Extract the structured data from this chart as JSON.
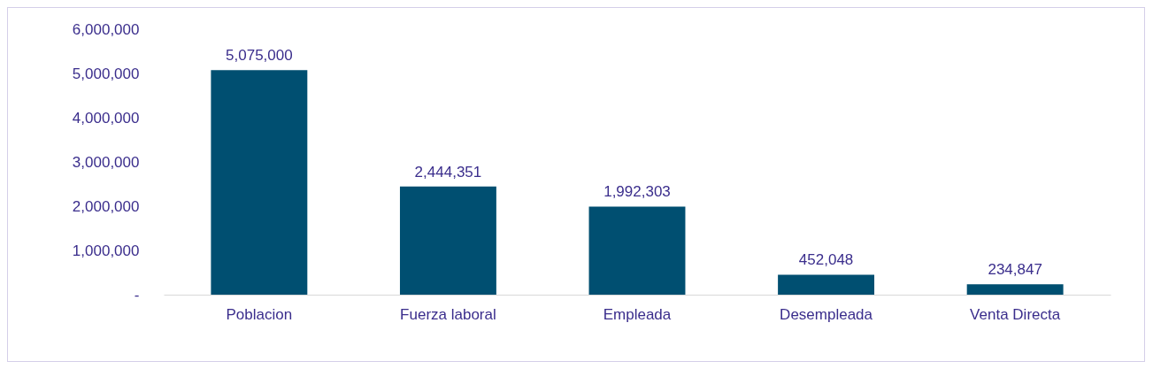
{
  "chart_data": {
    "type": "bar",
    "categories": [
      "Poblacion",
      "Fuerza laboral",
      "Empleada",
      "Desempleada",
      "Venta Directa"
    ],
    "values": [
      5075000,
      2444351,
      1992303,
      452048,
      234847
    ],
    "value_labels": [
      "5,075,000",
      "2,444,351",
      "1,992,303",
      "452,048",
      "234,847"
    ],
    "color": "#004f71",
    "ylim": [
      0,
      6000000
    ],
    "yticks": [
      {
        "value": 0,
        "label": "-"
      },
      {
        "value": 1000000,
        "label": "1,000,000"
      },
      {
        "value": 2000000,
        "label": "2,000,000"
      },
      {
        "value": 3000000,
        "label": "3,000,000"
      },
      {
        "value": 4000000,
        "label": "4,000,000"
      },
      {
        "value": 5000000,
        "label": "5,000,000"
      },
      {
        "value": 6000000,
        "label": "6,000,000"
      }
    ],
    "grid": false
  }
}
